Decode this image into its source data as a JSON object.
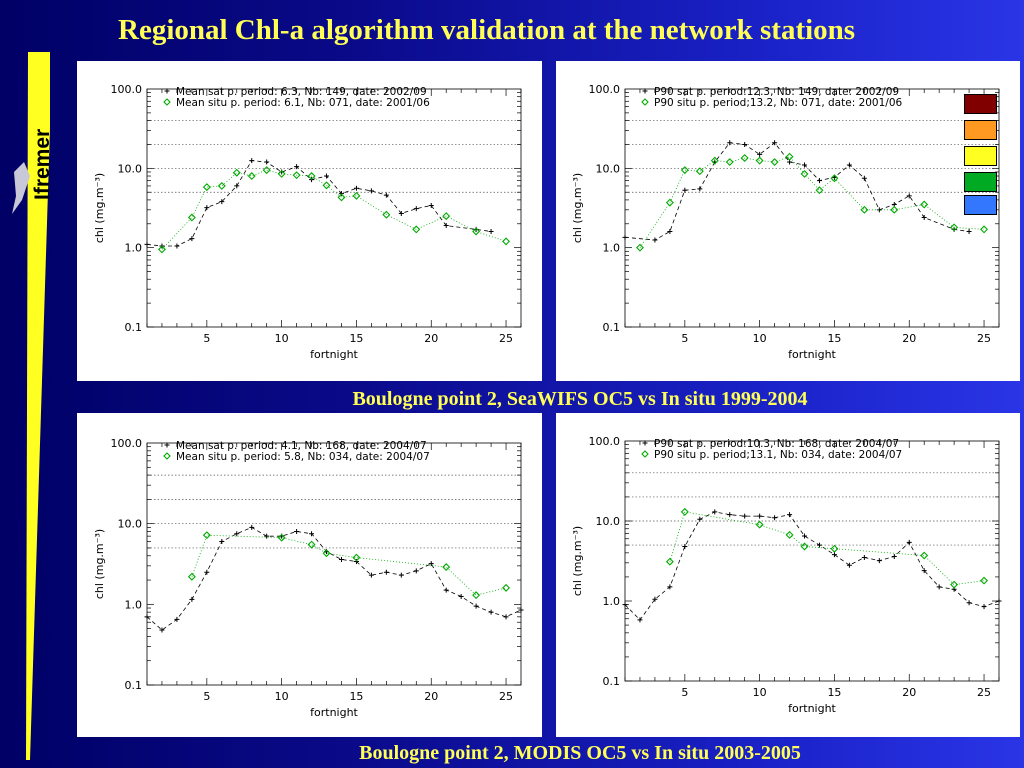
{
  "title": "Regional Chl-a algorithm validation at the network stations",
  "logo_text": "Ifremer",
  "captions": {
    "top": "Boulogne point 2, SeaWIFS OC5 vs In situ 1999-2004",
    "bottom": "Boulogne point 2, MODIS OC5 vs In situ 2003-2005"
  },
  "colors": {
    "title": "#ffff55",
    "sat_series": "#000000",
    "situ_series": "#00aa00",
    "background": "#0a0a8a"
  },
  "swatch_colors": [
    "#800000",
    "#ff9922",
    "#ffff22",
    "#00aa22",
    "#3377ff"
  ],
  "chart_data": [
    {
      "type": "line",
      "xlabel": "fortnight",
      "ylabel": "chl (mg.m⁻³)",
      "yscale": "log",
      "xlim": [
        1,
        26
      ],
      "ylim": [
        0.1,
        100
      ],
      "xticks": [
        "5",
        "10",
        "15",
        "20",
        "25"
      ],
      "yticks": [
        "0.1",
        "1.0",
        "10.0",
        "100.0"
      ],
      "hlines": [
        40,
        20,
        10,
        5
      ],
      "legend": "top-left",
      "series": [
        {
          "name": "Mean sat p. period: 6.3, Nb: 149, date: 2002/09",
          "marker": "plus",
          "style": "dashed",
          "x": [
            1,
            2,
            3,
            4,
            5,
            6,
            7,
            8,
            9,
            10,
            11,
            12,
            13,
            14,
            15,
            16,
            17,
            18,
            19,
            20,
            21,
            23,
            24
          ],
          "y": [
            1.1,
            1.05,
            1.05,
            1.3,
            3.2,
            3.8,
            6.0,
            12.5,
            12.0,
            9.0,
            10.5,
            7.2,
            8.0,
            4.8,
            5.6,
            5.2,
            4.6,
            2.7,
            3.1,
            3.4,
            1.9,
            1.7,
            1.6
          ]
        },
        {
          "name": "Mean situ p. period: 6.1, Nb: 071, date: 2001/06",
          "marker": "diamond",
          "style": "dotted",
          "x": [
            2,
            4,
            5,
            6,
            7,
            8,
            9,
            10,
            11,
            12,
            13,
            14,
            15,
            17,
            19,
            21,
            23,
            25
          ],
          "y": [
            0.95,
            2.4,
            5.8,
            6.0,
            8.8,
            8.0,
            9.5,
            8.5,
            8.2,
            8.0,
            6.1,
            4.3,
            4.5,
            2.6,
            1.7,
            2.5,
            1.6,
            1.2
          ]
        }
      ]
    },
    {
      "type": "line",
      "xlabel": "fortnight",
      "ylabel": "chl (mg.m⁻³)",
      "yscale": "log",
      "xlim": [
        1,
        26
      ],
      "ylim": [
        0.1,
        100
      ],
      "xticks": [
        "5",
        "10",
        "15",
        "20",
        "25"
      ],
      "yticks": [
        "0.1",
        "1.0",
        "10.0",
        "100.0"
      ],
      "hlines": [
        40,
        20,
        10,
        5
      ],
      "legend": "top-left",
      "series": [
        {
          "name": "P90 sat p. period:12.3, Nb: 149, date: 2002/09",
          "marker": "plus",
          "style": "dashed",
          "x": [
            1,
            3,
            4,
            5,
            6,
            7,
            8,
            9,
            10,
            11,
            12,
            13,
            14,
            15,
            16,
            17,
            18,
            19,
            20,
            21,
            23,
            24
          ],
          "y": [
            1.35,
            1.25,
            1.6,
            5.3,
            5.5,
            12.0,
            21.0,
            20.0,
            15.0,
            21.0,
            12.0,
            11.0,
            7.0,
            7.7,
            11.0,
            7.5,
            3.0,
            3.5,
            4.5,
            2.4,
            1.7,
            1.6
          ]
        },
        {
          "name": "P90 situ p. period;13.2, Nb: 071, date: 2001/06",
          "marker": "diamond",
          "style": "dotted",
          "x": [
            2,
            4,
            5,
            6,
            7,
            8,
            9,
            10,
            11,
            12,
            13,
            14,
            15,
            17,
            19,
            21,
            23,
            25
          ],
          "y": [
            1.0,
            3.7,
            9.5,
            9.2,
            12.5,
            12.0,
            13.5,
            12.5,
            12.0,
            14.0,
            8.5,
            5.3,
            7.5,
            3.0,
            3.0,
            3.5,
            1.8,
            1.7
          ]
        }
      ]
    },
    {
      "type": "line",
      "xlabel": "fortnight",
      "ylabel": "chl (mg.m⁻³)",
      "yscale": "log",
      "xlim": [
        1,
        26
      ],
      "ylim": [
        0.1,
        100
      ],
      "xticks": [
        "5",
        "10",
        "15",
        "20",
        "25"
      ],
      "yticks": [
        "0.1",
        "1.0",
        "10.0",
        "100.0"
      ],
      "hlines": [
        40,
        20,
        10,
        5
      ],
      "legend": "top-left",
      "series": [
        {
          "name": "Mean sat p. period: 4.1, Nb: 168, date: 2004/07",
          "marker": "plus",
          "style": "dashed",
          "x": [
            1,
            2,
            3,
            4,
            5,
            6,
            7,
            8,
            9,
            10,
            11,
            12,
            13,
            14,
            15,
            16,
            17,
            18,
            19,
            20,
            21,
            22,
            23,
            24,
            25,
            26
          ],
          "y": [
            0.7,
            0.48,
            0.65,
            1.15,
            2.5,
            6.0,
            7.5,
            9.0,
            7.0,
            7.0,
            8.0,
            7.5,
            4.5,
            3.6,
            3.4,
            2.3,
            2.5,
            2.3,
            2.6,
            3.2,
            1.5,
            1.25,
            0.95,
            0.8,
            0.7,
            0.85
          ]
        },
        {
          "name": "Mean situ p. period: 5.8, Nb: 034, date: 2004/07",
          "marker": "diamond",
          "style": "dotted",
          "x": [
            4,
            5,
            10,
            12,
            13,
            15,
            21,
            23,
            25
          ],
          "y": [
            2.2,
            7.2,
            6.7,
            5.5,
            4.3,
            3.8,
            2.9,
            1.3,
            1.6
          ]
        }
      ]
    },
    {
      "type": "line",
      "xlabel": "fortnight",
      "ylabel": "chl (mg.m⁻³)",
      "yscale": "log",
      "xlim": [
        1,
        26
      ],
      "ylim": [
        0.1,
        100
      ],
      "xticks": [
        "5",
        "10",
        "15",
        "20",
        "25"
      ],
      "yticks": [
        "0.1",
        "1.0",
        "10.0",
        "100.0"
      ],
      "hlines": [
        40,
        20,
        10,
        5
      ],
      "legend": "top-left",
      "series": [
        {
          "name": "P90 sat p. period:10.3, Nb: 168, date: 2004/07",
          "marker": "plus",
          "style": "dashed",
          "x": [
            1,
            2,
            3,
            4,
            5,
            6,
            7,
            8,
            9,
            10,
            11,
            12,
            13,
            14,
            15,
            16,
            17,
            18,
            19,
            20,
            21,
            22,
            23,
            24,
            25,
            26
          ],
          "y": [
            0.9,
            0.58,
            1.05,
            1.5,
            4.8,
            10.5,
            13.0,
            12.0,
            11.5,
            11.5,
            11.0,
            12.0,
            6.5,
            5.0,
            3.8,
            2.8,
            3.5,
            3.2,
            3.6,
            5.4,
            2.4,
            1.5,
            1.4,
            0.95,
            0.85,
            1.0
          ]
        },
        {
          "name": "P90 situ p. period;13.1, Nb: 034, date: 2004/07",
          "marker": "diamond",
          "style": "dotted",
          "x": [
            4,
            5,
            10,
            12,
            13,
            15,
            21,
            23,
            25
          ],
          "y": [
            3.1,
            13.0,
            9.0,
            6.7,
            4.8,
            4.5,
            3.7,
            1.6,
            1.8
          ]
        }
      ]
    }
  ]
}
